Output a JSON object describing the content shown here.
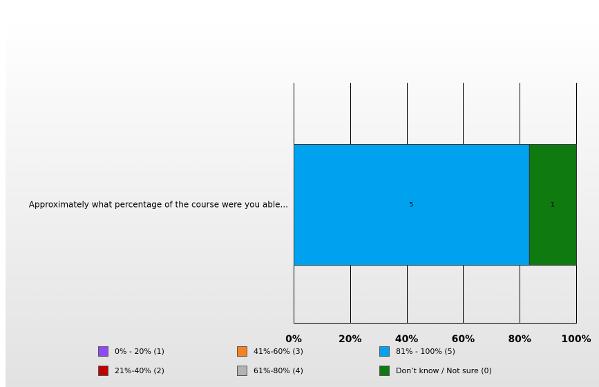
{
  "chart_data": {
    "type": "bar",
    "orientation": "horizontal",
    "stacked": true,
    "percent_stacked": true,
    "categories": [
      "Approximately what percentage of the course were you able..."
    ],
    "series": [
      {
        "name": "0% - 20% (1)",
        "values": [
          0
        ],
        "color": "#8f4bf7"
      },
      {
        "name": "21%-40% (2)",
        "values": [
          0
        ],
        "color": "#c00000"
      },
      {
        "name": "41%-60% (3)",
        "values": [
          0
        ],
        "color": "#f58220"
      },
      {
        "name": "61%-80% (4)",
        "values": [
          0
        ],
        "color": "#b3b3b3"
      },
      {
        "name": "81% - 100% (5)",
        "values": [
          5
        ],
        "color": "#00a2f0"
      },
      {
        "name": "Don’t know / Not sure (0)",
        "values": [
          1
        ],
        "color": "#0f7a10"
      }
    ],
    "xlim": [
      0,
      100
    ],
    "x_ticks": [
      "0%",
      "20%",
      "40%",
      "60%",
      "80%",
      "100%"
    ],
    "grid": true,
    "legend_position": "bottom"
  }
}
